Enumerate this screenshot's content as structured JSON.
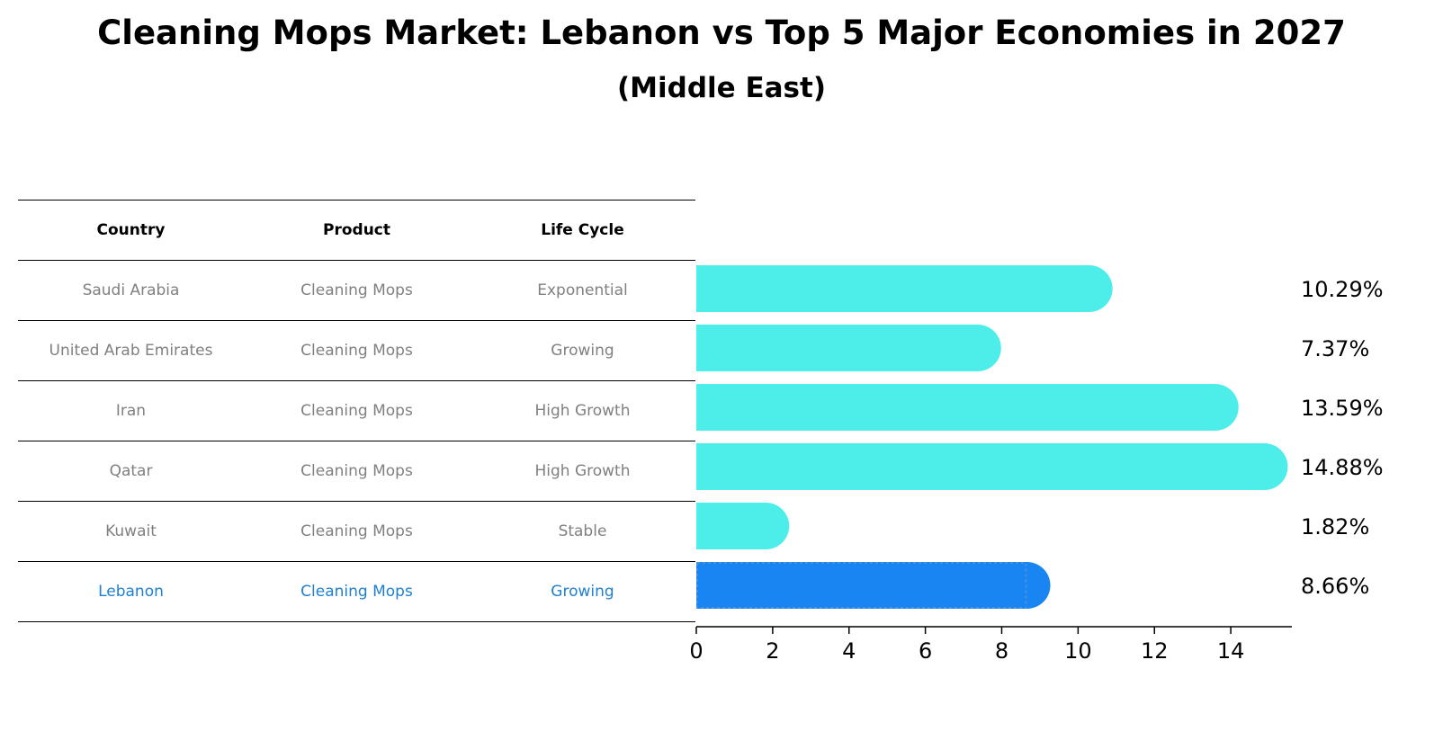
{
  "title": "Cleaning Mops Market: Lebanon vs Top 5 Major Economies in 2027",
  "subtitle": "(Middle East)",
  "colors": {
    "bar": "#4DEEEA",
    "highlight_bar": "#1985F2",
    "highlight_text": "#1F7FD0",
    "muted_text": "#808080"
  },
  "table": {
    "headers": [
      "Country",
      "Product",
      "Life Cycle"
    ],
    "rows": [
      {
        "country": "Saudi Arabia",
        "product": "Cleaning Mops",
        "life_cycle": "Exponential"
      },
      {
        "country": "United Arab Emirates",
        "product": "Cleaning Mops",
        "life_cycle": "Growing"
      },
      {
        "country": "Iran",
        "product": "Cleaning Mops",
        "life_cycle": "High Growth"
      },
      {
        "country": "Qatar",
        "product": "Cleaning Mops",
        "life_cycle": "High Growth"
      },
      {
        "country": "Kuwait",
        "product": "Cleaning Mops",
        "life_cycle": "Stable"
      },
      {
        "country": "Lebanon",
        "product": "Cleaning Mops",
        "life_cycle": "Growing"
      }
    ]
  },
  "chart_data": {
    "type": "bar",
    "orientation": "horizontal",
    "title": "Cleaning Mops Market: Lebanon vs Top 5 Major Economies in 2027",
    "subtitle": "(Middle East)",
    "categories": [
      "Saudi Arabia",
      "United Arab Emirates",
      "Iran",
      "Qatar",
      "Kuwait",
      "Lebanon"
    ],
    "values": [
      10.29,
      7.37,
      13.59,
      14.88,
      1.82,
      8.66
    ],
    "value_labels": [
      "10.29%",
      "7.37%",
      "13.59%",
      "14.88%",
      "1.82%",
      "8.66%"
    ],
    "highlight": "Lebanon",
    "xlim": [
      0,
      15.6
    ],
    "xticks": [
      0,
      2,
      4,
      6,
      8,
      10,
      12,
      14
    ],
    "xlabel": "",
    "ylabel": "",
    "grid": false
  }
}
